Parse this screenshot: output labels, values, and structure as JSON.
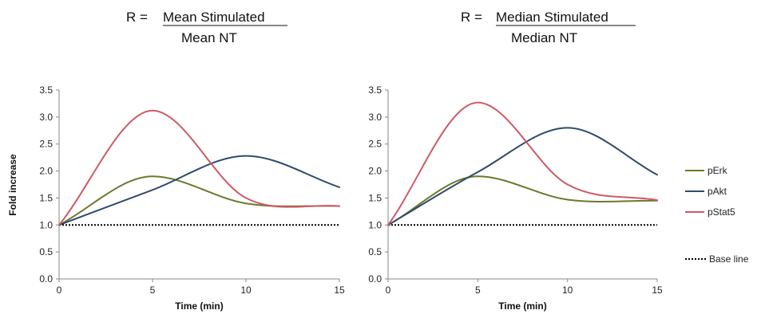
{
  "colors": {
    "pErk": "#6b7a2a",
    "pAkt": "#2f4a6b",
    "pStat5": "#cd5a66",
    "baseline": "#000000"
  },
  "legend": {
    "items": [
      {
        "key": "pErk",
        "label": "pErk"
      },
      {
        "key": "pAkt",
        "label": "pAkt"
      },
      {
        "key": "pStat5",
        "label": "pStat5"
      }
    ],
    "baseline_label": "Base line"
  },
  "chart_data": [
    {
      "type": "line",
      "title_prefix": "R = ",
      "numerator": "Mean Stimulated",
      "denominator": "Mean NT",
      "xlabel": "Time (min)",
      "ylabel": "Fold increase",
      "xlim": [
        0,
        15
      ],
      "ylim": [
        0,
        3.5
      ],
      "xticks": [
        "0",
        "5",
        "10",
        "15"
      ],
      "yticks": [
        "0.0",
        "0.5",
        "1.0",
        "1.5",
        "2.0",
        "2.5",
        "3.0",
        "3.5"
      ],
      "x": [
        0,
        5,
        10,
        15
      ],
      "series": [
        {
          "name": "pErk",
          "values": [
            1.0,
            1.9,
            1.4,
            1.35
          ]
        },
        {
          "name": "pAkt",
          "values": [
            1.0,
            1.65,
            2.28,
            1.7
          ]
        },
        {
          "name": "pStat5",
          "values": [
            1.0,
            3.12,
            1.5,
            1.35
          ]
        }
      ],
      "baseline": 1.0
    },
    {
      "type": "line",
      "title_prefix": "R = ",
      "numerator": "Median Stimulated",
      "denominator": "Median NT",
      "xlabel": "Time (min)",
      "ylabel": "",
      "xlim": [
        0,
        15
      ],
      "ylim": [
        0,
        3.5
      ],
      "xticks": [
        "0",
        "5",
        "10",
        "15"
      ],
      "yticks": [
        "0.0",
        "0.5",
        "1.0",
        "1.5",
        "2.0",
        "2.5",
        "3.0",
        "3.5"
      ],
      "x": [
        0,
        5,
        10,
        15
      ],
      "series": [
        {
          "name": "pErk",
          "values": [
            1.0,
            1.9,
            1.47,
            1.45
          ]
        },
        {
          "name": "pAkt",
          "values": [
            1.0,
            1.98,
            2.8,
            1.93
          ]
        },
        {
          "name": "pStat5",
          "values": [
            1.0,
            3.27,
            1.75,
            1.46
          ]
        }
      ],
      "baseline": 1.0
    }
  ]
}
